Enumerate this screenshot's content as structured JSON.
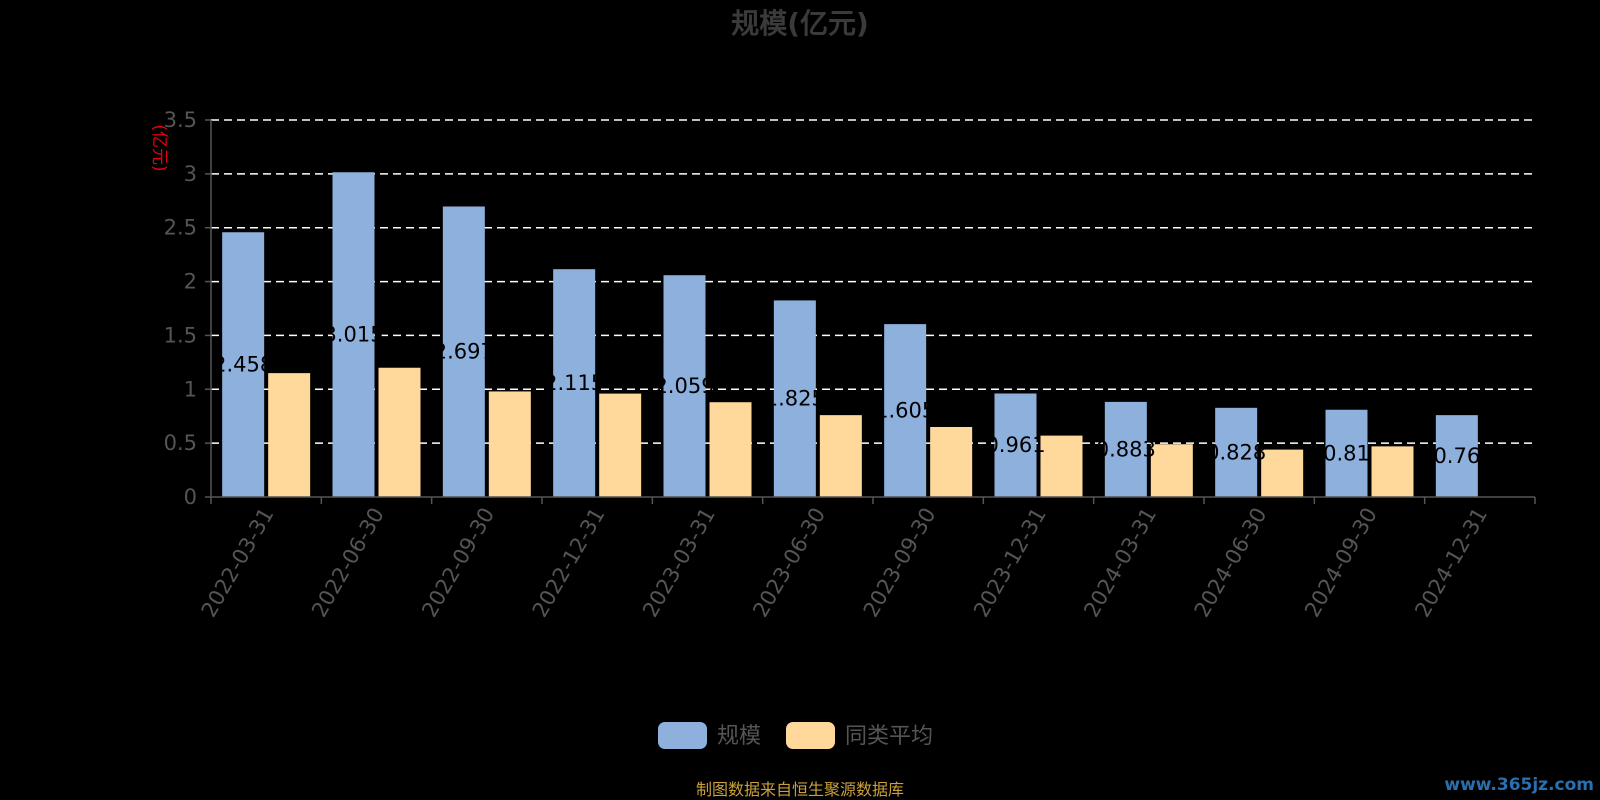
{
  "chart_data": {
    "type": "bar",
    "title": "规模(亿元)",
    "y_unit_label": "(亿元)",
    "categories": [
      "2022-03-31",
      "2022-06-30",
      "2022-09-30",
      "2022-12-31",
      "2023-03-31",
      "2023-06-30",
      "2023-09-30",
      "2023-12-31",
      "2024-03-31",
      "2024-06-30",
      "2024-09-30",
      "2024-12-31"
    ],
    "series": [
      {
        "name": "规模",
        "values": [
          2.458,
          3.015,
          2.697,
          2.115,
          2.059,
          1.825,
          1.605,
          0.961,
          0.883,
          0.828,
          0.81,
          0.76
        ],
        "labels": [
          "2.458",
          "3.015",
          "2.697",
          "2.115",
          "2.059",
          "1.825",
          "1.605",
          "0.961",
          "0.883",
          "0.828",
          "0.81",
          "0.76"
        ]
      },
      {
        "name": "同类平均",
        "values": [
          1.15,
          1.2,
          0.98,
          0.96,
          0.88,
          0.76,
          0.65,
          0.57,
          0.49,
          0.44,
          0.47,
          null
        ]
      }
    ],
    "yticks": [
      "0",
      "0.5",
      "1",
      "1.5",
      "2",
      "2.5",
      "3",
      "3.5"
    ],
    "ylim": [
      0,
      3.5
    ],
    "grid": true,
    "legend_position": "bottom",
    "colors": {
      "series_0": "#8eb0dc",
      "series_1": "#ffd99c",
      "title": "#3a3a3a",
      "axis_text": "#555555",
      "unit": "#e60012",
      "value_label": "#000000",
      "grid": "#ffffff",
      "source": "#c9a03c",
      "watermark": "#2a6fb0"
    }
  },
  "footer": {
    "source": "制图数据来自恒生聚源数据库",
    "watermark": "www.365jz.com"
  }
}
